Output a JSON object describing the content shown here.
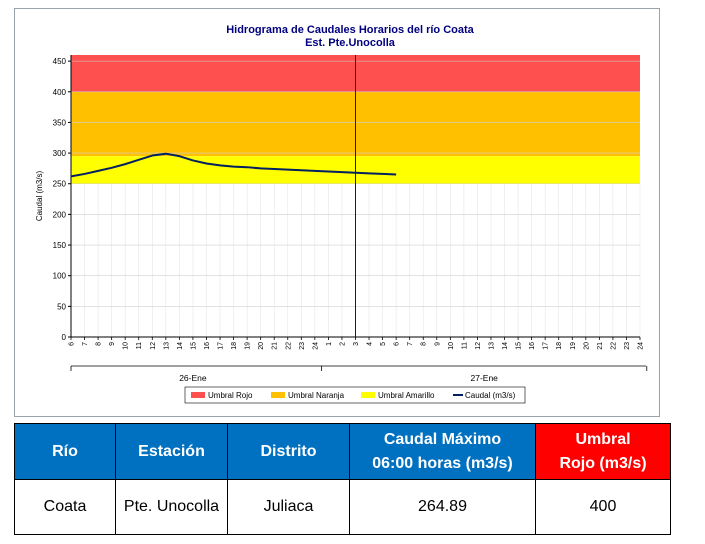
{
  "chart_data": {
    "type": "line",
    "title": "Hidrograma de Caudales Horarios del río Coata",
    "subtitle": "Est. Pte.Unocolla",
    "ylabel": "Caudal  (m3/s)",
    "ylim": [
      0,
      460
    ],
    "yticks": [
      0,
      50,
      100,
      150,
      200,
      250,
      300,
      350,
      400,
      450
    ],
    "x_hour_labels": [
      "6",
      "7",
      "8",
      "9",
      "10",
      "11",
      "12",
      "13",
      "14",
      "15",
      "16",
      "17",
      "18",
      "19",
      "20",
      "21",
      "22",
      "23",
      "24",
      "1",
      "2",
      "3",
      "4",
      "5",
      "6",
      "7",
      "8",
      "9",
      "10",
      "11",
      "12",
      "13",
      "14",
      "15",
      "16",
      "17",
      "18",
      "19",
      "20",
      "21",
      "22",
      "23",
      "24"
    ],
    "date_groups": [
      {
        "label": "26-Ene",
        "from_index": 0,
        "to_index": 18
      },
      {
        "label": "27-Ene",
        "from_index": 19,
        "to_index": 42
      }
    ],
    "current_time_index": 21,
    "bands": [
      {
        "name": "Umbral Rojo",
        "from": 400,
        "to": 460,
        "color": "#ff5050"
      },
      {
        "name": "Umbral Naranja",
        "from": 295,
        "to": 400,
        "color": "#ffc000"
      },
      {
        "name": "Umbral Amarillo",
        "from": 250,
        "to": 295,
        "color": "#ffff00"
      }
    ],
    "series": [
      {
        "name": "Caudal (m3/s)",
        "color": "#002060",
        "x": [
          0,
          1,
          2,
          3,
          4,
          5,
          6,
          7,
          8,
          9,
          10,
          11,
          12,
          13,
          14,
          15,
          16,
          17,
          18,
          19,
          20,
          21,
          22,
          23,
          24
        ],
        "values": [
          262,
          266,
          271,
          276,
          282,
          289,
          296,
          299,
          295,
          288,
          283,
          280,
          278,
          277,
          275,
          274,
          273,
          272,
          271,
          270,
          269,
          268,
          267,
          266,
          265
        ]
      }
    ],
    "grid": true,
    "legend": "bottom"
  },
  "table": {
    "headers": [
      {
        "line1": "Río",
        "line2": ""
      },
      {
        "line1": "Estación",
        "line2": ""
      },
      {
        "line1": "Distrito",
        "line2": ""
      },
      {
        "line1": "Caudal Máximo",
        "line2": "06:00 horas (m3/s)"
      },
      {
        "line1": "Umbral",
        "line2": "Rojo (m3/s)"
      }
    ],
    "header_colors": [
      "#0070c0",
      "#ff0000"
    ],
    "row": [
      "Coata",
      "Pte. Unocolla",
      "Juliaca",
      "264.89",
      "400"
    ]
  }
}
